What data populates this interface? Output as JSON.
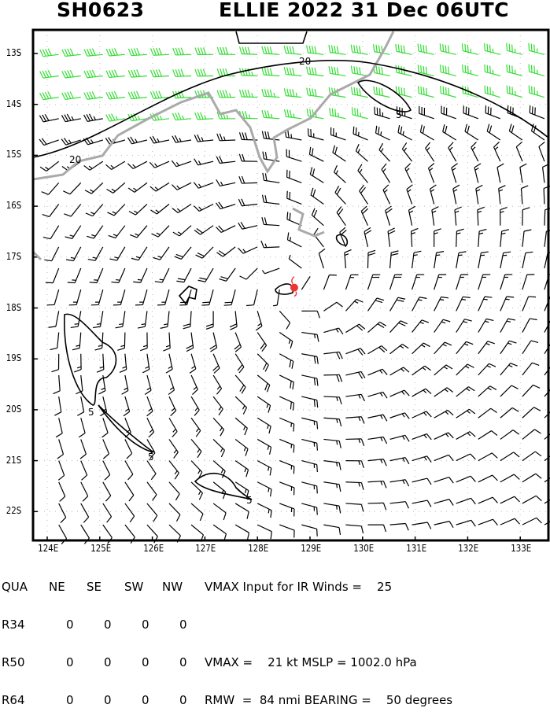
{
  "header": {
    "storm_id": "SH0623",
    "title": "ELLIE 2022 31 Dec 06UTC"
  },
  "axes": {
    "lon_labels": [
      "124E",
      "125E",
      "126E",
      "127E",
      "128E",
      "129E",
      "130E",
      "131E",
      "132E",
      "133E"
    ],
    "lat_labels": [
      "13S",
      "14S",
      "15S",
      "16S",
      "17S",
      "18S",
      "19S",
      "20S",
      "21S",
      "22S"
    ]
  },
  "contour_labels": [
    "20",
    "20",
    "5",
    "5",
    "5",
    "5"
  ],
  "storm": {
    "center_lon": 128.7,
    "center_lat": -17.6,
    "vmax_kt": 21,
    "rmw_nmi": 84
  },
  "colors": {
    "barb": "#000000",
    "barb_strong": "#33dd33",
    "coast": "#aaaaaa",
    "center": "#ee3333",
    "contour": "#000000"
  },
  "table": {
    "header": [
      "QUA",
      "NE",
      "SE",
      "SW",
      "NW"
    ],
    "rows": [
      [
        "R34",
        "0",
        "0",
        "0",
        "0"
      ],
      [
        "R50",
        "0",
        "0",
        "0",
        "0"
      ],
      [
        "R64",
        "0",
        "0",
        "0",
        "0"
      ]
    ],
    "vmax_input": "VMAX Input for IR Winds =    25",
    "vmax_line": "VMAX =    21 kt MSLP = 1002.0 hPa",
    "rmw_line": "RMW  =  84 nmi BEARING =    50 degrees"
  }
}
